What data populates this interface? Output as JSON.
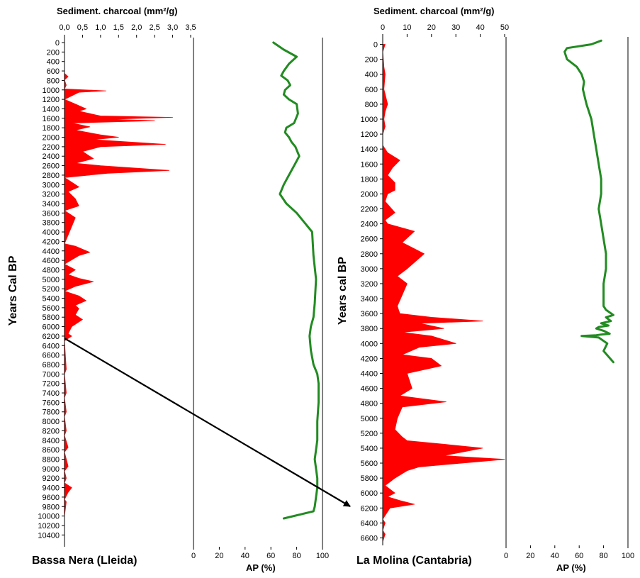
{
  "chart_data": [
    {
      "type": "area",
      "site": "Bassa Nera (Lleida)",
      "title": "Sediment. charcoal (mm²/g)",
      "xlabel": "Sediment. charcoal (mm²/g)",
      "ylabel": "Years Cal BP",
      "x_ticks": [
        "0,0",
        "0,5",
        "1,0",
        "1,5",
        "2,0",
        "2,5",
        "3,0",
        "3,5"
      ],
      "xlim": [
        0,
        3.5
      ],
      "y_ticks": [
        "0",
        "200",
        "400",
        "600",
        "800",
        "1000",
        "1200",
        "1400",
        "1600",
        "1800",
        "2000",
        "2200",
        "2400",
        "2600",
        "2800",
        "3000",
        "3200",
        "3400",
        "3600",
        "3800",
        "4000",
        "4200",
        "4400",
        "4600",
        "4800",
        "5000",
        "5200",
        "5400",
        "5600",
        "5800",
        "6000",
        "6200",
        "6400",
        "6600",
        "6800",
        "7000",
        "7200",
        "7400",
        "7600",
        "7800",
        "8000",
        "8200",
        "8400",
        "8600",
        "8800",
        "9000",
        "9200",
        "9400",
        "9600",
        "9800",
        "10000",
        "10200",
        "10400"
      ],
      "ylim": [
        0,
        10500
      ],
      "color": "#ff0000",
      "series": [
        {
          "x": [
            0,
            0.1,
            0,
            0.05,
            0,
            1.15,
            0.4,
            0,
            0.3,
            0.6,
            0.4,
            1.0,
            3.0,
            1.2,
            2.5,
            0.2,
            0.7,
            0.3,
            1.0,
            1.5,
            0.8,
            2.8,
            1.0,
            0.5,
            0.8,
            0.3,
            1.0,
            2.9,
            1.2,
            0,
            0.2,
            0.4,
            0.1,
            0.3,
            0.4,
            0,
            0.3,
            0,
            0.3,
            0.7,
            0.4,
            0,
            0.3,
            0.1,
            0.4,
            0.8,
            0.3,
            0,
            0.4,
            0.6,
            0.3,
            0.4,
            0.3,
            0.5,
            0.2,
            0.1,
            0.2,
            0,
            0.05,
            0,
            0.05,
            0,
            0.05,
            0,
            0.05,
            0,
            0.1,
            0,
            0.1,
            0,
            0.05,
            0,
            0.2,
            0.1,
            0,
            0.05,
            0
          ],
          "y": [
            650,
            720,
            790,
            900,
            980,
            1020,
            1050,
            1200,
            1300,
            1400,
            1450,
            1550,
            1580,
            1620,
            1650,
            1700,
            1780,
            1850,
            1950,
            2000,
            2050,
            2150,
            2200,
            2300,
            2450,
            2550,
            2600,
            2700,
            2760,
            2850,
            2950,
            3050,
            3150,
            3300,
            3450,
            3550,
            3700,
            4250,
            4300,
            4430,
            4500,
            4680,
            4800,
            4900,
            4980,
            5050,
            5150,
            5250,
            5350,
            5450,
            5550,
            5620,
            5750,
            5850,
            6000,
            6150,
            6200,
            6300,
            6900,
            7000,
            7400,
            7500,
            7800,
            7900,
            8200,
            8300,
            8550,
            8650,
            8950,
            9050,
            9200,
            9300,
            9400,
            9500,
            9650,
            9700,
            10000
          ]
        }
      ]
    },
    {
      "type": "line",
      "site": "Bassa Nera (Lleida)",
      "xlabel": "AP (%)",
      "x_ticks": [
        "0",
        "20",
        "40",
        "60",
        "80",
        "100"
      ],
      "xlim": [
        0,
        100
      ],
      "ylim": [
        0,
        10500
      ],
      "color": "#228b22",
      "series": [
        {
          "x": [
            62,
            70,
            80,
            74,
            70,
            68,
            73,
            75,
            71,
            70,
            74,
            80,
            81,
            78,
            72,
            71,
            74,
            76,
            79,
            82,
            78,
            74,
            70,
            67,
            72,
            80,
            86,
            92,
            93,
            95,
            94,
            93,
            91,
            90,
            91,
            93,
            96,
            97,
            97,
            96,
            96,
            95,
            94,
            95,
            96,
            96,
            95,
            94,
            93,
            70
          ],
          "y": [
            0,
            150,
            300,
            450,
            600,
            700,
            800,
            900,
            1000,
            1100,
            1200,
            1300,
            1500,
            1700,
            1800,
            1900,
            2000,
            2100,
            2200,
            2400,
            2600,
            2800,
            3000,
            3200,
            3400,
            3600,
            3800,
            4000,
            4500,
            5000,
            5500,
            5800,
            6000,
            6200,
            6500,
            6800,
            7000,
            7200,
            7600,
            8000,
            8400,
            8600,
            8800,
            9000,
            9200,
            9400,
            9600,
            9800,
            9900,
            10050
          ]
        }
      ]
    },
    {
      "type": "area",
      "site": "La Molina (Cantabria)",
      "title": "Sediment. charcoal (mm²/g)",
      "xlabel": "Sediment. charcoal (mm²/g)",
      "ylabel": "Years cal BP",
      "x_ticks": [
        "0",
        "10",
        "20",
        "30",
        "40",
        "50"
      ],
      "xlim": [
        0,
        50
      ],
      "y_ticks": [
        "0",
        "200",
        "400",
        "600",
        "800",
        "1000",
        "1200",
        "1400",
        "1600",
        "1800",
        "2000",
        "2200",
        "2400",
        "2600",
        "2800",
        "3000",
        "3200",
        "3400",
        "3600",
        "3800",
        "4000",
        "4200",
        "4400",
        "4600",
        "4800",
        "5000",
        "5200",
        "5400",
        "5600",
        "5800",
        "6000",
        "6200",
        "6400",
        "6600"
      ],
      "ylim": [
        -100,
        6700
      ],
      "color": "#ff0000",
      "series": [
        {
          "x": [
            1,
            0,
            0.5,
            1,
            0.5,
            2,
            1,
            0.5,
            1,
            0,
            0,
            2,
            7,
            4,
            2,
            5,
            5,
            2,
            1,
            5,
            3,
            1,
            2,
            13,
            8,
            17,
            10,
            6,
            10,
            8,
            6,
            7,
            20,
            41,
            15,
            25,
            8,
            20,
            30,
            15,
            8,
            20,
            24,
            10,
            12,
            7,
            26,
            8,
            6,
            5,
            8,
            10,
            26,
            41,
            25,
            50,
            15,
            10,
            5,
            3,
            1,
            5,
            2,
            7,
            13,
            3,
            1,
            0,
            1,
            0,
            1,
            0
          ],
          "y": [
            0,
            100,
            300,
            400,
            600,
            800,
            900,
            1000,
            1100,
            1200,
            1350,
            1450,
            1550,
            1650,
            1750,
            1850,
            1950,
            2000,
            2100,
            2250,
            2300,
            2350,
            2400,
            2500,
            2650,
            2800,
            3000,
            3100,
            3200,
            3350,
            3500,
            3600,
            3650,
            3700,
            3730,
            3800,
            3850,
            3900,
            4000,
            4050,
            4150,
            4200,
            4300,
            4400,
            4600,
            4700,
            4780,
            4850,
            5000,
            5150,
            5250,
            5300,
            5350,
            5400,
            5500,
            5550,
            5650,
            5700,
            5800,
            5850,
            5900,
            6000,
            6050,
            6100,
            6150,
            6200,
            6300,
            6350,
            6400,
            6500,
            6550,
            6650
          ]
        }
      ]
    },
    {
      "type": "line",
      "site": "La Molina (Cantabria)",
      "xlabel": "AP (%)",
      "x_ticks": [
        "0",
        "20",
        "40",
        "60",
        "80",
        "100"
      ],
      "xlim": [
        0,
        100
      ],
      "ylim": [
        -100,
        6700
      ],
      "color": "#228b22",
      "series": [
        {
          "x": [
            78,
            70,
            50,
            48,
            50,
            58,
            62,
            64,
            63,
            66,
            70,
            72,
            74,
            76,
            78,
            78,
            76,
            78,
            80,
            82,
            82,
            80,
            80,
            80,
            82,
            88,
            82,
            86,
            78,
            84,
            76,
            74,
            80,
            85,
            78,
            74,
            62,
            76,
            83,
            80,
            88
          ],
          "y": [
            -50,
            0,
            50,
            100,
            200,
            300,
            400,
            500,
            600,
            800,
            1000,
            1200,
            1400,
            1600,
            1800,
            2000,
            2200,
            2400,
            2600,
            2800,
            3000,
            3200,
            3400,
            3500,
            3550,
            3620,
            3650,
            3700,
            3730,
            3760,
            3780,
            3800,
            3830,
            3870,
            3880,
            3890,
            3900,
            3920,
            4000,
            4100,
            4250
          ]
        }
      ]
    }
  ]
}
